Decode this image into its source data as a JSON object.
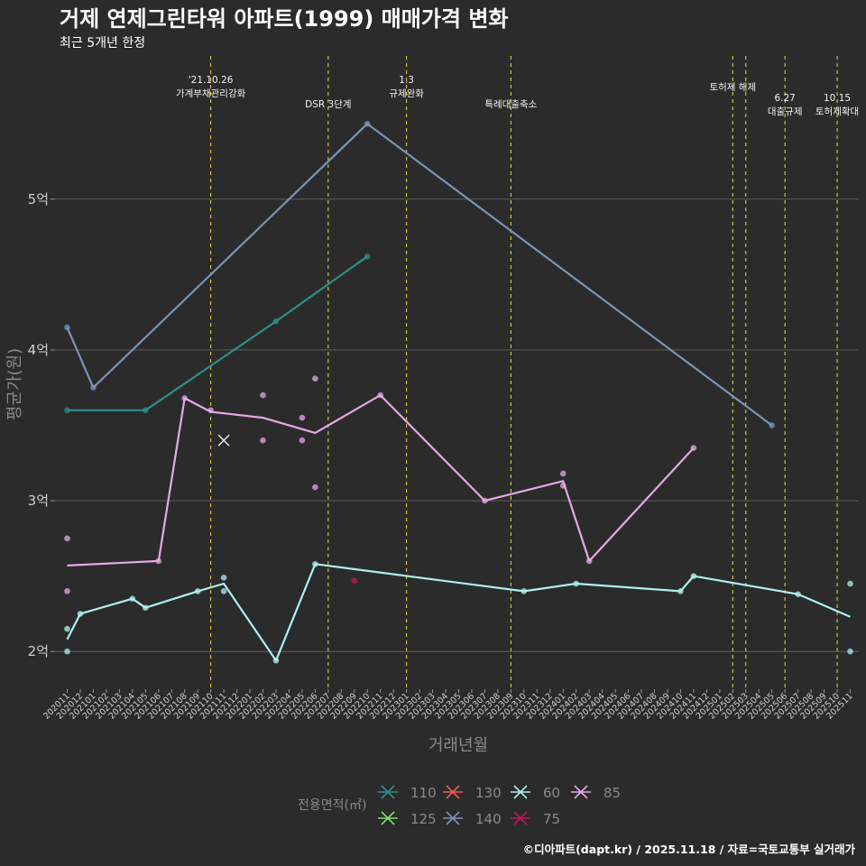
{
  "chart_data": {
    "type": "line",
    "title": "거제 연제그린타워 아파트(1999) 매매가격 변화",
    "subtitle": "최근 5개년 한정",
    "xlabel": "거래년월",
    "ylabel": "평균가(원)",
    "caption": "©디아파트(dapt.kr) / 2025.11.18 / 자료=국토교통부 실거래가",
    "categories": [
      "202011",
      "202012",
      "202101",
      "202102",
      "202103",
      "202104",
      "202105",
      "202106",
      "202107",
      "202108",
      "202109",
      "202110",
      "202111",
      "202112",
      "202201",
      "202202",
      "202203",
      "202204",
      "202205",
      "202206",
      "202207",
      "202208",
      "202209",
      "202210",
      "202211",
      "202212",
      "202301",
      "202302",
      "202303",
      "202304",
      "202305",
      "202306",
      "202307",
      "202308",
      "202309",
      "202310",
      "202311",
      "202312",
      "202401",
      "202402",
      "202403",
      "202404",
      "202405",
      "202406",
      "202407",
      "202408",
      "202409",
      "202410",
      "202411",
      "202412",
      "202501",
      "202502",
      "202503",
      "202504",
      "202505",
      "202506",
      "202507",
      "202508",
      "202509",
      "202510",
      "202511"
    ],
    "ylim": [
      1.75,
      5.95
    ],
    "yticks": [
      {
        "value": 2,
        "label": "2억"
      },
      {
        "value": 3,
        "label": "3억"
      },
      {
        "value": 4,
        "label": "4억"
      },
      {
        "value": 5,
        "label": "5억"
      }
    ],
    "events": [
      {
        "at": "202110",
        "lines": [
          "'21.10.26",
          "가계부채관리강화"
        ],
        "level": 1
      },
      {
        "at": "202207",
        "lines": [
          "DSR 3단계"
        ],
        "level": 3
      },
      {
        "at": "202301",
        "lines": [
          "1.3",
          "규제완화"
        ],
        "level": 1
      },
      {
        "at": "202309",
        "lines": [
          "특례대출축소"
        ],
        "level": 3
      },
      {
        "at": "202502",
        "lines": [
          "토허제 해제"
        ],
        "level": 2
      },
      {
        "at": "202503",
        "lines": [],
        "level": 2
      },
      {
        "at": "202506",
        "lines": [
          "6.27",
          "대출규제"
        ],
        "level": 3
      },
      {
        "at": "202510",
        "lines": [
          "10.15",
          "토허제확대"
        ],
        "level": 3
      }
    ],
    "series": [
      {
        "name": "140",
        "color": "#7b93b8",
        "line": [
          [
            "202011",
            4.15
          ],
          [
            "202101",
            3.75
          ],
          [
            "202210",
            5.5
          ],
          [
            "202505",
            3.5
          ]
        ],
        "points": [
          [
            "202011",
            4.15
          ],
          [
            "202101",
            3.75
          ],
          [
            "202210",
            5.5
          ],
          [
            "202505",
            3.5
          ]
        ]
      },
      {
        "name": "110",
        "color": "#2f8f87",
        "line": [
          [
            "202011",
            3.6
          ],
          [
            "202105",
            3.6
          ],
          [
            "202203",
            4.19
          ],
          [
            "202210",
            4.62
          ]
        ],
        "points": [
          [
            "202011",
            3.6
          ],
          [
            "202105",
            3.6
          ],
          [
            "202203",
            4.19
          ],
          [
            "202210",
            4.62
          ]
        ]
      },
      {
        "name": "85",
        "color": "#e6a8e6",
        "line": [
          [
            "202011",
            2.57
          ],
          [
            "202106",
            2.6
          ],
          [
            "202108",
            3.68
          ],
          [
            "202110",
            3.59
          ],
          [
            "202202",
            3.55
          ],
          [
            "202206",
            3.45
          ],
          [
            "202211",
            3.7
          ],
          [
            "202307",
            3.0
          ],
          [
            "202401",
            3.13
          ],
          [
            "202403",
            2.6
          ],
          [
            "202411",
            3.35
          ]
        ],
        "points": [
          [
            "202011",
            2.75
          ],
          [
            "202011",
            2.4
          ],
          [
            "202106",
            2.6
          ],
          [
            "202108",
            3.68
          ],
          [
            "202110",
            3.6
          ],
          [
            "202202",
            3.7
          ],
          [
            "202202",
            3.4
          ],
          [
            "202205",
            3.55
          ],
          [
            "202205",
            3.4
          ],
          [
            "202206",
            3.81
          ],
          [
            "202206",
            3.09
          ],
          [
            "202211",
            3.7
          ],
          [
            "202307",
            3.0
          ],
          [
            "202401",
            3.18
          ],
          [
            "202401",
            3.1
          ],
          [
            "202403",
            2.6
          ],
          [
            "202411",
            3.35
          ]
        ]
      },
      {
        "name": "60",
        "color": "#aef0ee",
        "line": [
          [
            "202011",
            2.08
          ],
          [
            "202012",
            2.25
          ],
          [
            "202104",
            2.35
          ],
          [
            "202105",
            2.29
          ],
          [
            "202109",
            2.4
          ],
          [
            "202111",
            2.45
          ],
          [
            "202203",
            1.94
          ],
          [
            "202206",
            2.58
          ],
          [
            "202310",
            2.4
          ],
          [
            "202402",
            2.45
          ],
          [
            "202410",
            2.4
          ],
          [
            "202411",
            2.5
          ],
          [
            "202507",
            2.38
          ],
          [
            "202511",
            2.23
          ]
        ],
        "points": [
          [
            "202011",
            2.15
          ],
          [
            "202011",
            2.0
          ],
          [
            "202012",
            2.25
          ],
          [
            "202104",
            2.35
          ],
          [
            "202105",
            2.29
          ],
          [
            "202109",
            2.4
          ],
          [
            "202111",
            2.49
          ],
          [
            "202111",
            2.4
          ],
          [
            "202203",
            1.94
          ],
          [
            "202206",
            2.58
          ],
          [
            "202310",
            2.4
          ],
          [
            "202402",
            2.45
          ],
          [
            "202410",
            2.4
          ],
          [
            "202411",
            2.5
          ],
          [
            "202507",
            2.38
          ],
          [
            "202511",
            2.45
          ],
          [
            "202511",
            2.0
          ]
        ]
      },
      {
        "name": "75",
        "color": "#c2185b",
        "line": [],
        "points": [
          [
            "202209",
            2.47
          ]
        ]
      },
      {
        "name": "130",
        "color": "#e85d55",
        "line": [],
        "points": [],
        "cross": [
          [
            "202111",
            3.4
          ]
        ]
      },
      {
        "name": "125",
        "color": "#7ee06a",
        "line": [],
        "points": []
      }
    ],
    "legend": {
      "title": "전용면적(㎡)",
      "rows": [
        [
          {
            "name": "110",
            "color": "#2f8f87"
          },
          {
            "name": "130",
            "color": "#e85d55"
          },
          {
            "name": "60",
            "color": "#aef0ee"
          },
          {
            "name": "85",
            "color": "#e6a8e6"
          }
        ],
        [
          {
            "name": "125",
            "color": "#7ee06a"
          },
          {
            "name": "140",
            "color": "#7b93b8"
          },
          {
            "name": "75",
            "color": "#c2185b"
          }
        ]
      ]
    }
  }
}
